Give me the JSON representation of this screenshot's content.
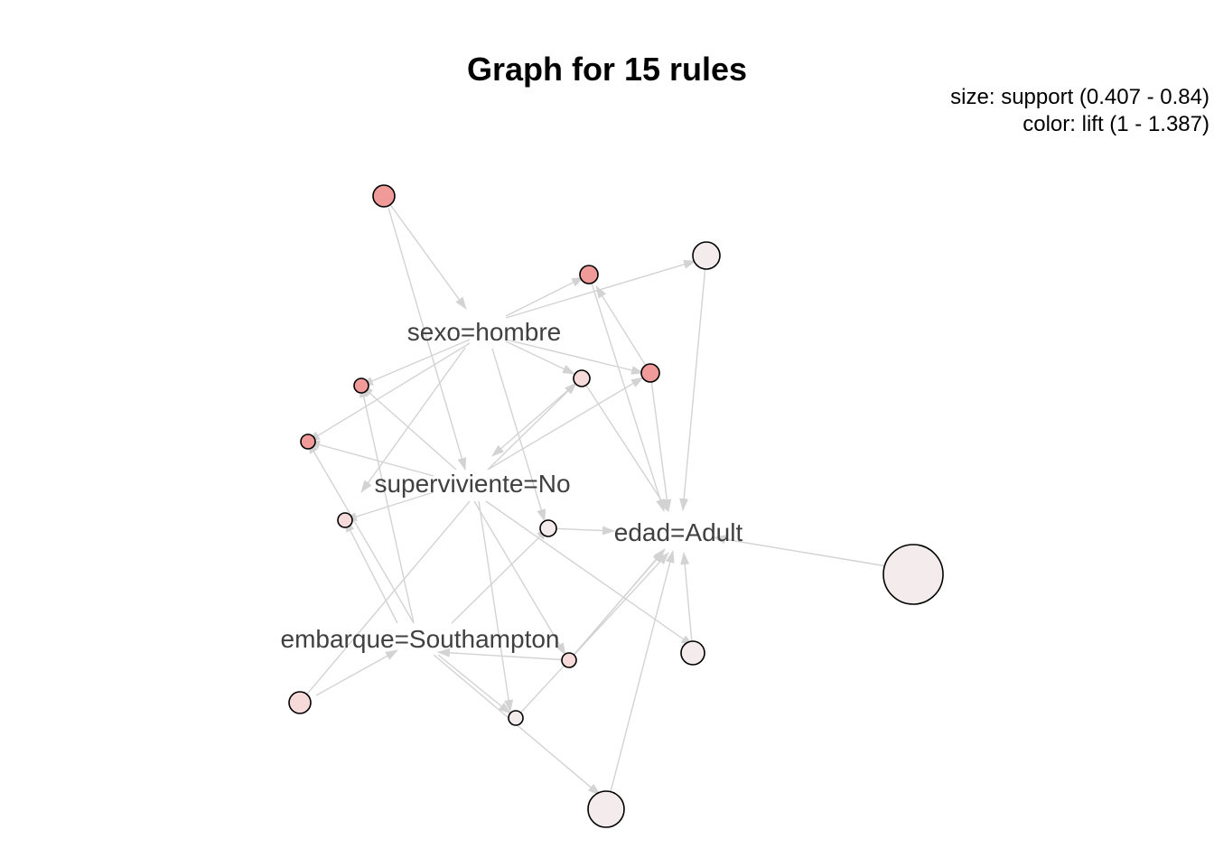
{
  "title": "Graph for 15 rules",
  "legend": {
    "size_text": "size: support (0.407 - 0.84)",
    "color_text": "color: lift (1 - 1.387)"
  },
  "colors": {
    "edge": "#d3d3d3",
    "node_border": "#000000",
    "label": "#404040",
    "lift_low": "#f4ecec",
    "lift_mid": "#f6dada",
    "lift_high": "#f09a9a"
  },
  "items": [
    {
      "id": "sexo",
      "label": "sexo=hombre"
    },
    {
      "id": "superviviente",
      "label": "superviviente=No"
    },
    {
      "id": "edad",
      "label": "edad=Adult"
    },
    {
      "id": "embarque",
      "label": "embarque=Southampton"
    }
  ]
}
